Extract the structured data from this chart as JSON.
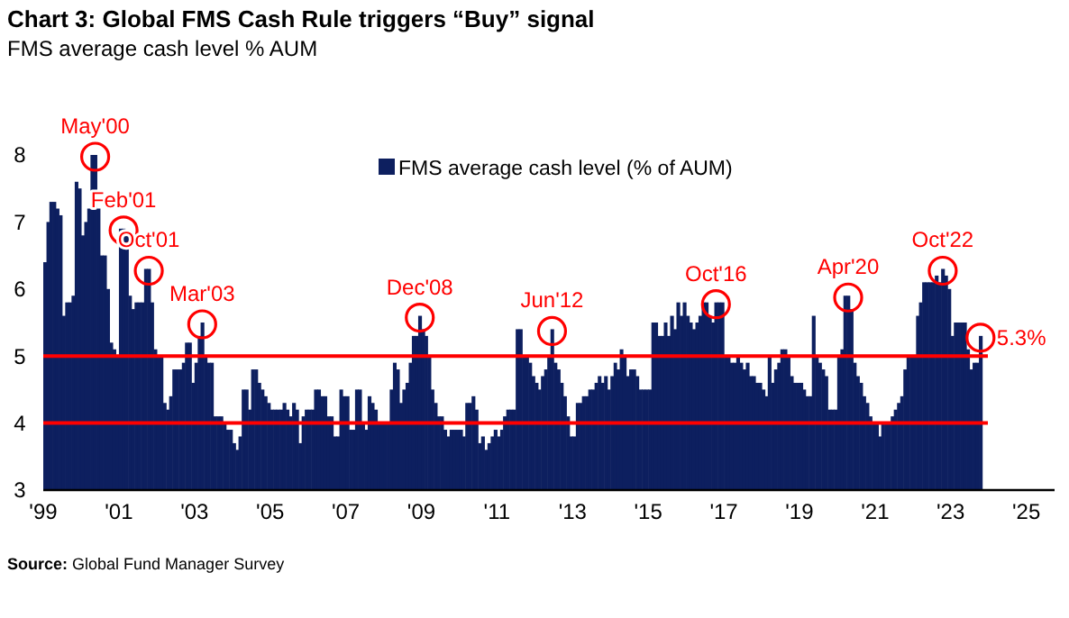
{
  "chart_data": {
    "type": "bar",
    "title": "Chart 3: Global FMS Cash Rule triggers “Buy” signal",
    "subtitle": "FMS average cash level % AUM",
    "x": [
      "1999-01",
      "1999-02",
      "1999-03",
      "1999-04",
      "1999-05",
      "1999-06",
      "1999-07",
      "1999-08",
      "1999-09",
      "1999-10",
      "1999-11",
      "1999-12",
      "2000-01",
      "2000-02",
      "2000-03",
      "2000-04",
      "2000-05",
      "2000-06",
      "2000-07",
      "2000-08",
      "2000-09",
      "2000-10",
      "2000-11",
      "2000-12",
      "2001-01",
      "2001-02",
      "2001-03",
      "2001-04",
      "2001-05",
      "2001-06",
      "2001-07",
      "2001-08",
      "2001-09",
      "2001-10",
      "2001-11",
      "2001-12",
      "2002-01",
      "2002-02",
      "2002-03",
      "2002-04",
      "2002-05",
      "2002-06",
      "2002-07",
      "2002-08",
      "2002-09",
      "2002-10",
      "2002-11",
      "2002-12",
      "2003-01",
      "2003-02",
      "2003-03",
      "2003-04",
      "2003-05",
      "2003-06",
      "2003-07",
      "2003-08",
      "2003-09",
      "2003-10",
      "2003-11",
      "2003-12",
      "2004-01",
      "2004-02",
      "2004-03",
      "2004-04",
      "2004-05",
      "2004-06",
      "2004-07",
      "2004-08",
      "2004-09",
      "2004-10",
      "2004-11",
      "2004-12",
      "2005-01",
      "2005-02",
      "2005-03",
      "2005-04",
      "2005-05",
      "2005-06",
      "2005-07",
      "2005-08",
      "2005-09",
      "2005-10",
      "2005-11",
      "2005-12",
      "2006-01",
      "2006-02",
      "2006-03",
      "2006-04",
      "2006-05",
      "2006-06",
      "2006-07",
      "2006-08",
      "2006-09",
      "2006-10",
      "2006-11",
      "2006-12",
      "2007-01",
      "2007-02",
      "2007-03",
      "2007-04",
      "2007-05",
      "2007-06",
      "2007-07",
      "2007-08",
      "2007-09",
      "2007-10",
      "2007-11",
      "2007-12",
      "2008-01",
      "2008-02",
      "2008-03",
      "2008-04",
      "2008-05",
      "2008-06",
      "2008-07",
      "2008-08",
      "2008-09",
      "2008-10",
      "2008-11",
      "2008-12",
      "2009-01",
      "2009-02",
      "2009-03",
      "2009-04",
      "2009-05",
      "2009-06",
      "2009-07",
      "2009-08",
      "2009-09",
      "2009-10",
      "2009-11",
      "2009-12",
      "2010-01",
      "2010-02",
      "2010-03",
      "2010-04",
      "2010-05",
      "2010-06",
      "2010-07",
      "2010-08",
      "2010-09",
      "2010-10",
      "2010-11",
      "2010-12",
      "2011-01",
      "2011-02",
      "2011-03",
      "2011-04",
      "2011-05",
      "2011-06",
      "2011-07",
      "2011-08",
      "2011-09",
      "2011-10",
      "2011-11",
      "2011-12",
      "2012-01",
      "2012-02",
      "2012-03",
      "2012-04",
      "2012-05",
      "2012-06",
      "2012-07",
      "2012-08",
      "2012-09",
      "2012-10",
      "2012-11",
      "2012-12",
      "2013-01",
      "2013-02",
      "2013-03",
      "2013-04",
      "2013-05",
      "2013-06",
      "2013-07",
      "2013-08",
      "2013-09",
      "2013-10",
      "2013-11",
      "2013-12",
      "2014-01",
      "2014-02",
      "2014-03",
      "2014-04",
      "2014-05",
      "2014-06",
      "2014-07",
      "2014-08",
      "2014-09",
      "2014-10",
      "2014-11",
      "2014-12",
      "2015-01",
      "2015-02",
      "2015-03",
      "2015-04",
      "2015-05",
      "2015-06",
      "2015-07",
      "2015-08",
      "2015-09",
      "2015-10",
      "2015-11",
      "2015-12",
      "2016-01",
      "2016-02",
      "2016-03",
      "2016-04",
      "2016-05",
      "2016-06",
      "2016-07",
      "2016-08",
      "2016-09",
      "2016-10",
      "2016-11",
      "2016-12",
      "2017-01",
      "2017-02",
      "2017-03",
      "2017-04",
      "2017-05",
      "2017-06",
      "2017-07",
      "2017-08",
      "2017-09",
      "2017-10",
      "2017-11",
      "2017-12",
      "2018-01",
      "2018-02",
      "2018-03",
      "2018-04",
      "2018-05",
      "2018-06",
      "2018-07",
      "2018-08",
      "2018-09",
      "2018-10",
      "2018-11",
      "2018-12",
      "2019-01",
      "2019-02",
      "2019-03",
      "2019-04",
      "2019-05",
      "2019-06",
      "2019-07",
      "2019-08",
      "2019-09",
      "2019-10",
      "2019-11",
      "2019-12",
      "2020-01",
      "2020-02",
      "2020-03",
      "2020-04",
      "2020-05",
      "2020-06",
      "2020-07",
      "2020-08",
      "2020-09",
      "2020-10",
      "2020-11",
      "2020-12",
      "2021-01",
      "2021-02",
      "2021-03",
      "2021-04",
      "2021-05",
      "2021-06",
      "2021-07",
      "2021-08",
      "2021-09",
      "2021-10",
      "2021-11",
      "2021-12",
      "2022-01",
      "2022-02",
      "2022-03",
      "2022-04",
      "2022-05",
      "2022-06",
      "2022-07",
      "2022-08",
      "2022-09",
      "2022-10",
      "2022-11",
      "2022-12",
      "2023-01",
      "2023-02",
      "2023-03",
      "2023-04",
      "2023-05",
      "2023-06",
      "2023-07",
      "2023-08",
      "2023-09",
      "2023-10"
    ],
    "series": [
      {
        "name": "FMS average cash level (% of AUM)",
        "color": "#0d1f5f",
        "values": [
          6.4,
          7.0,
          7.3,
          7.3,
          7.2,
          7.1,
          5.6,
          5.8,
          5.8,
          5.9,
          7.6,
          7.5,
          6.8,
          7.0,
          7.2,
          8.0,
          8.0,
          7.2,
          6.5,
          6.5,
          6.0,
          5.2,
          5.1,
          5.0,
          6.9,
          6.9,
          6.8,
          5.9,
          5.7,
          5.8,
          5.8,
          5.8,
          6.3,
          6.3,
          5.8,
          5.1,
          5.0,
          5.0,
          4.3,
          4.2,
          4.4,
          4.8,
          4.8,
          4.8,
          4.9,
          5.2,
          5.2,
          4.6,
          4.9,
          5.3,
          5.5,
          5.0,
          4.9,
          4.9,
          4.1,
          4.1,
          4.1,
          4.0,
          3.9,
          3.9,
          3.7,
          3.6,
          3.8,
          4.5,
          4.5,
          4.2,
          4.8,
          4.8,
          4.6,
          4.5,
          4.4,
          4.3,
          4.2,
          4.2,
          4.2,
          4.2,
          4.3,
          4.2,
          4.1,
          4.3,
          4.2,
          3.7,
          4.1,
          4.2,
          4.2,
          4.2,
          4.5,
          4.5,
          4.4,
          4.4,
          4.1,
          4.1,
          3.8,
          3.8,
          4.5,
          4.4,
          4.4,
          3.9,
          3.9,
          4.5,
          4.5,
          4.0,
          3.9,
          4.4,
          4.3,
          4.2,
          4.0,
          4.0,
          4.0,
          4.0,
          4.5,
          4.9,
          4.8,
          4.3,
          4.5,
          4.6,
          4.9,
          5.3,
          5.3,
          5.6,
          5.4,
          5.3,
          5.0,
          4.5,
          4.3,
          4.1,
          4.1,
          3.9,
          3.8,
          3.9,
          3.9,
          3.9,
          3.9,
          3.8,
          4.3,
          4.3,
          4.4,
          4.2,
          3.7,
          3.8,
          3.6,
          3.7,
          3.8,
          3.9,
          3.8,
          3.9,
          4.1,
          4.2,
          4.2,
          4.2,
          5.4,
          5.4,
          5.0,
          5.0,
          4.9,
          4.7,
          4.6,
          4.5,
          4.7,
          4.8,
          5.0,
          5.4,
          4.9,
          4.8,
          4.6,
          4.4,
          4.1,
          3.8,
          3.8,
          4.3,
          4.3,
          4.4,
          4.4,
          4.5,
          4.5,
          4.6,
          4.7,
          4.6,
          4.7,
          4.5,
          4.7,
          4.9,
          4.8,
          5.1,
          5.0,
          4.7,
          4.8,
          4.8,
          4.7,
          4.5,
          4.5,
          4.5,
          4.5,
          5.5,
          5.5,
          5.3,
          5.3,
          5.5,
          5.3,
          5.6,
          5.4,
          5.8,
          5.6,
          5.8,
          5.6,
          5.5,
          5.4,
          5.5,
          5.6,
          5.8,
          5.8,
          5.6,
          5.5,
          5.8,
          5.8,
          5.8,
          5.0,
          5.0,
          4.9,
          4.9,
          5.0,
          4.9,
          4.8,
          4.9,
          4.7,
          4.7,
          4.6,
          4.6,
          4.5,
          4.4,
          5.0,
          4.6,
          4.8,
          4.9,
          5.1,
          5.1,
          5.0,
          4.7,
          4.6,
          4.6,
          4.6,
          4.5,
          4.4,
          4.4,
          5.6,
          5.0,
          4.9,
          4.8,
          4.7,
          4.2,
          4.2,
          4.2,
          5.0,
          5.1,
          5.9,
          5.9,
          5.7,
          4.9,
          4.7,
          4.6,
          4.4,
          4.3,
          4.1,
          4.0,
          4.0,
          3.8,
          4.0,
          4.0,
          4.0,
          4.1,
          4.2,
          4.3,
          4.4,
          4.8,
          5.0,
          5.0,
          5.0,
          5.6,
          5.8,
          6.1,
          6.1,
          6.1,
          6.1,
          6.2,
          6.1,
          6.3,
          6.2,
          6.0,
          5.3,
          5.5,
          5.5,
          5.5,
          5.5,
          5.1,
          4.8,
          4.9,
          4.9,
          5.3
        ]
      }
    ],
    "xlim": [
      "1999-01",
      "2025-10"
    ],
    "xticks": [
      {
        "value": "1999-01",
        "label": "'99"
      },
      {
        "value": "2001-01",
        "label": "'01"
      },
      {
        "value": "2003-01",
        "label": "'03"
      },
      {
        "value": "2005-01",
        "label": "'05"
      },
      {
        "value": "2007-01",
        "label": "'07"
      },
      {
        "value": "2009-01",
        "label": "'09"
      },
      {
        "value": "2011-01",
        "label": "'11"
      },
      {
        "value": "2013-01",
        "label": "'13"
      },
      {
        "value": "2015-01",
        "label": "'15"
      },
      {
        "value": "2017-01",
        "label": "'17"
      },
      {
        "value": "2019-01",
        "label": "'19"
      },
      {
        "value": "2021-01",
        "label": "'21"
      },
      {
        "value": "2023-01",
        "label": "'23"
      },
      {
        "value": "2025-01",
        "label": "'25"
      }
    ],
    "ylim": [
      3,
      8
    ],
    "yticks": [
      3,
      4,
      5,
      6,
      7,
      8
    ],
    "ref_lines": [
      {
        "axis": "y",
        "value": 5,
        "color": "#ff0000"
      },
      {
        "axis": "y",
        "value": 4,
        "color": "#ff0000"
      }
    ],
    "annotations": [
      {
        "text": "May'00",
        "x": "2000-05",
        "y": 8.0
      },
      {
        "text": "Feb'01",
        "x": "2001-02",
        "y": 6.9
      },
      {
        "text": "Oct'01",
        "x": "2001-10",
        "y": 6.3
      },
      {
        "text": "Mar'03",
        "x": "2003-03",
        "y": 5.5
      },
      {
        "text": "Dec'08",
        "x": "2008-12",
        "y": 5.6
      },
      {
        "text": "Jun'12",
        "x": "2012-06",
        "y": 5.4
      },
      {
        "text": "Oct'16",
        "x": "2016-10",
        "y": 5.8
      },
      {
        "text": "Apr'20",
        "x": "2020-04",
        "y": 5.9
      },
      {
        "text": "Oct'22",
        "x": "2022-10",
        "y": 6.3
      },
      {
        "text": "5.3%",
        "x": "2023-10",
        "y": 5.3
      },
      "Source: Global Fund Manager Survey"
    ],
    "legend": "top right",
    "grid": false
  }
}
